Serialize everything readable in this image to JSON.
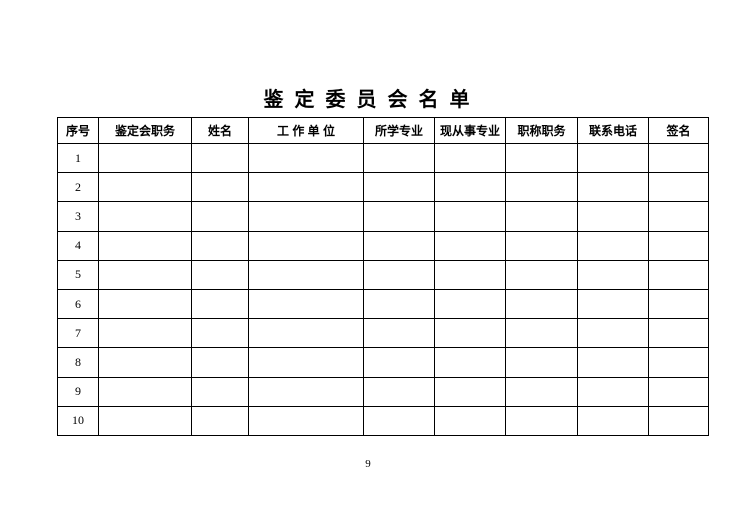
{
  "page": {
    "title": "鉴 定 委 员 会 名 单",
    "page_number": "9"
  },
  "table": {
    "headers": [
      "序号",
      "鉴定会职务",
      "姓名",
      "工 作 单 位",
      "所学专业",
      "现从事专业",
      "职称职务",
      "联系电话",
      "签名"
    ],
    "rows": [
      {
        "no": "1",
        "cells": [
          "",
          "",
          "",
          "",
          "",
          "",
          "",
          ""
        ]
      },
      {
        "no": "2",
        "cells": [
          "",
          "",
          "",
          "",
          "",
          "",
          "",
          ""
        ]
      },
      {
        "no": "3",
        "cells": [
          "",
          "",
          "",
          "",
          "",
          "",
          "",
          ""
        ]
      },
      {
        "no": "4",
        "cells": [
          "",
          "",
          "",
          "",
          "",
          "",
          "",
          ""
        ]
      },
      {
        "no": "5",
        "cells": [
          "",
          "",
          "",
          "",
          "",
          "",
          "",
          ""
        ]
      },
      {
        "no": "6",
        "cells": [
          "",
          "",
          "",
          "",
          "",
          "",
          "",
          ""
        ]
      },
      {
        "no": "7",
        "cells": [
          "",
          "",
          "",
          "",
          "",
          "",
          "",
          ""
        ]
      },
      {
        "no": "8",
        "cells": [
          "",
          "",
          "",
          "",
          "",
          "",
          "",
          ""
        ]
      },
      {
        "no": "9",
        "cells": [
          "",
          "",
          "",
          "",
          "",
          "",
          "",
          ""
        ]
      },
      {
        "no": "10",
        "cells": [
          "",
          "",
          "",
          "",
          "",
          "",
          "",
          ""
        ]
      }
    ],
    "text_color": "#000000",
    "border_color": "#000000"
  }
}
